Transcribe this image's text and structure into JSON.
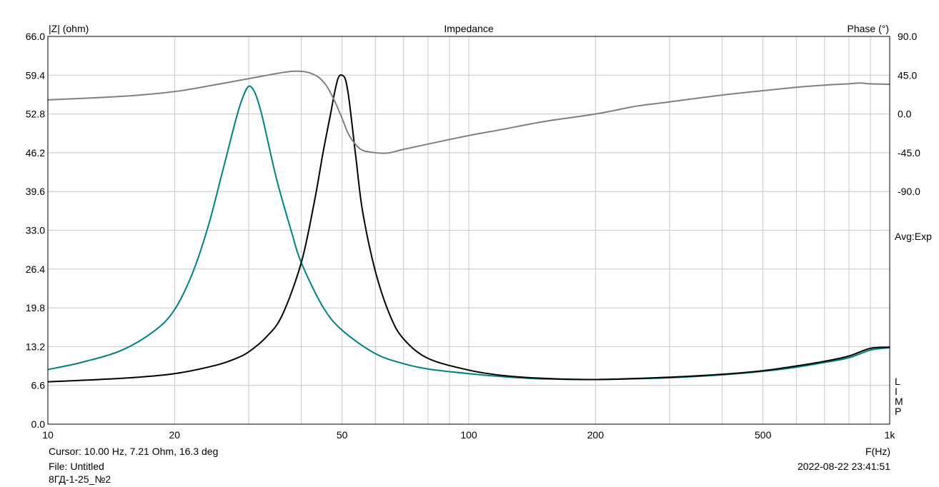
{
  "chart_data": {
    "type": "line",
    "title": "Impedance",
    "left_axis_label": "|Z| (ohm)",
    "right_axis_label": "Phase (°)",
    "x_axis_label": "F(Hz)",
    "x_scale": "log",
    "x_range": [
      10,
      1000
    ],
    "x_tick_labels": [
      {
        "value": 10,
        "label": "10"
      },
      {
        "value": 20,
        "label": "20"
      },
      {
        "value": 50,
        "label": "50"
      },
      {
        "value": 100,
        "label": "100"
      },
      {
        "value": 200,
        "label": "200"
      },
      {
        "value": 500,
        "label": "500"
      },
      {
        "value": 1000,
        "label": "1k"
      }
    ],
    "y_left_range": [
      0,
      66
    ],
    "y_left_tick_labels": [
      "0.0",
      "6.6",
      "13.2",
      "19.8",
      "26.4",
      "33.0",
      "39.6",
      "46.2",
      "52.8",
      "59.4",
      "66.0"
    ],
    "y_right_tick_labels": [
      {
        "value": 90,
        "label": "90.0"
      },
      {
        "value": 45,
        "label": "45.0"
      },
      {
        "value": 0,
        "label": "0.0"
      },
      {
        "value": -45,
        "label": "-45.0"
      },
      {
        "value": -90,
        "label": "-90.0"
      }
    ],
    "right_annotation": "Avg:Exp",
    "lim_letters": [
      "L",
      "I",
      "M",
      "P"
    ],
    "grid": true,
    "series": [
      {
        "color": "#008080",
        "axis": "left",
        "x": [
          10,
          12,
          15,
          18,
          20,
          22,
          24,
          26,
          28,
          29,
          30,
          31,
          32,
          33,
          35,
          38,
          40,
          45,
          50,
          60,
          70,
          80,
          100,
          120,
          150,
          200,
          300,
          400,
          500,
          600,
          700,
          800,
          900,
          1000
        ],
        "y": [
          9.3,
          10.5,
          12.6,
          16.0,
          19.5,
          25.5,
          33.5,
          43.0,
          52.0,
          55.5,
          57.5,
          56.5,
          53.5,
          49.5,
          41.5,
          32.5,
          27.5,
          20.0,
          16.0,
          12.0,
          10.3,
          9.4,
          8.6,
          8.1,
          7.7,
          7.6,
          7.9,
          8.4,
          9.0,
          9.7,
          10.5,
          11.3,
          12.6,
          13.0
        ]
      },
      {
        "color": "#000000",
        "axis": "left",
        "x": [
          10,
          15,
          20,
          25,
          28,
          30,
          33,
          36,
          40,
          43,
          45,
          47,
          48,
          49,
          50,
          51,
          52,
          54,
          56,
          60,
          65,
          70,
          80,
          100,
          120,
          150,
          200,
          300,
          400,
          500,
          600,
          700,
          800,
          900,
          1000
        ],
        "y": [
          7.21,
          7.8,
          8.6,
          10.0,
          11.2,
          12.3,
          14.8,
          18.5,
          27.5,
          38.0,
          46.0,
          53.0,
          56.5,
          59.0,
          59.4,
          58.5,
          55.0,
          45.0,
          36.0,
          26.0,
          18.5,
          14.5,
          11.2,
          9.2,
          8.3,
          7.8,
          7.6,
          8.0,
          8.5,
          9.1,
          9.9,
          10.7,
          11.6,
          12.9,
          13.1
        ]
      },
      {
        "color": "#808080",
        "axis": "right",
        "x": [
          10,
          15,
          20,
          25,
          30,
          35,
          38,
          40,
          42,
          44,
          46,
          48,
          50,
          52,
          55,
          58,
          62,
          65,
          70,
          80,
          100,
          120,
          150,
          200,
          250,
          300,
          400,
          500,
          600,
          700,
          800,
          850,
          900,
          1000
        ],
        "y": [
          16.3,
          20.5,
          26.0,
          34.0,
          41.0,
          47.0,
          49.5,
          49.5,
          47.5,
          42.5,
          32.0,
          15.0,
          -5.0,
          -25.0,
          -40.0,
          -44.0,
          -45.5,
          -45.0,
          -41.0,
          -35.0,
          -25.0,
          -18.0,
          -9.0,
          0.0,
          9.0,
          14.0,
          22.0,
          27.0,
          31.0,
          33.5,
          35.0,
          36.0,
          35.0,
          34.5
        ]
      }
    ]
  },
  "footer": {
    "cursor": "Cursor: 10.00 Hz, 7.21 Ohm, 16.3 deg",
    "file": "File: Untitled",
    "name": "8ГД-1-25_№2",
    "timestamp": "2022-08-22 23:41:51"
  }
}
